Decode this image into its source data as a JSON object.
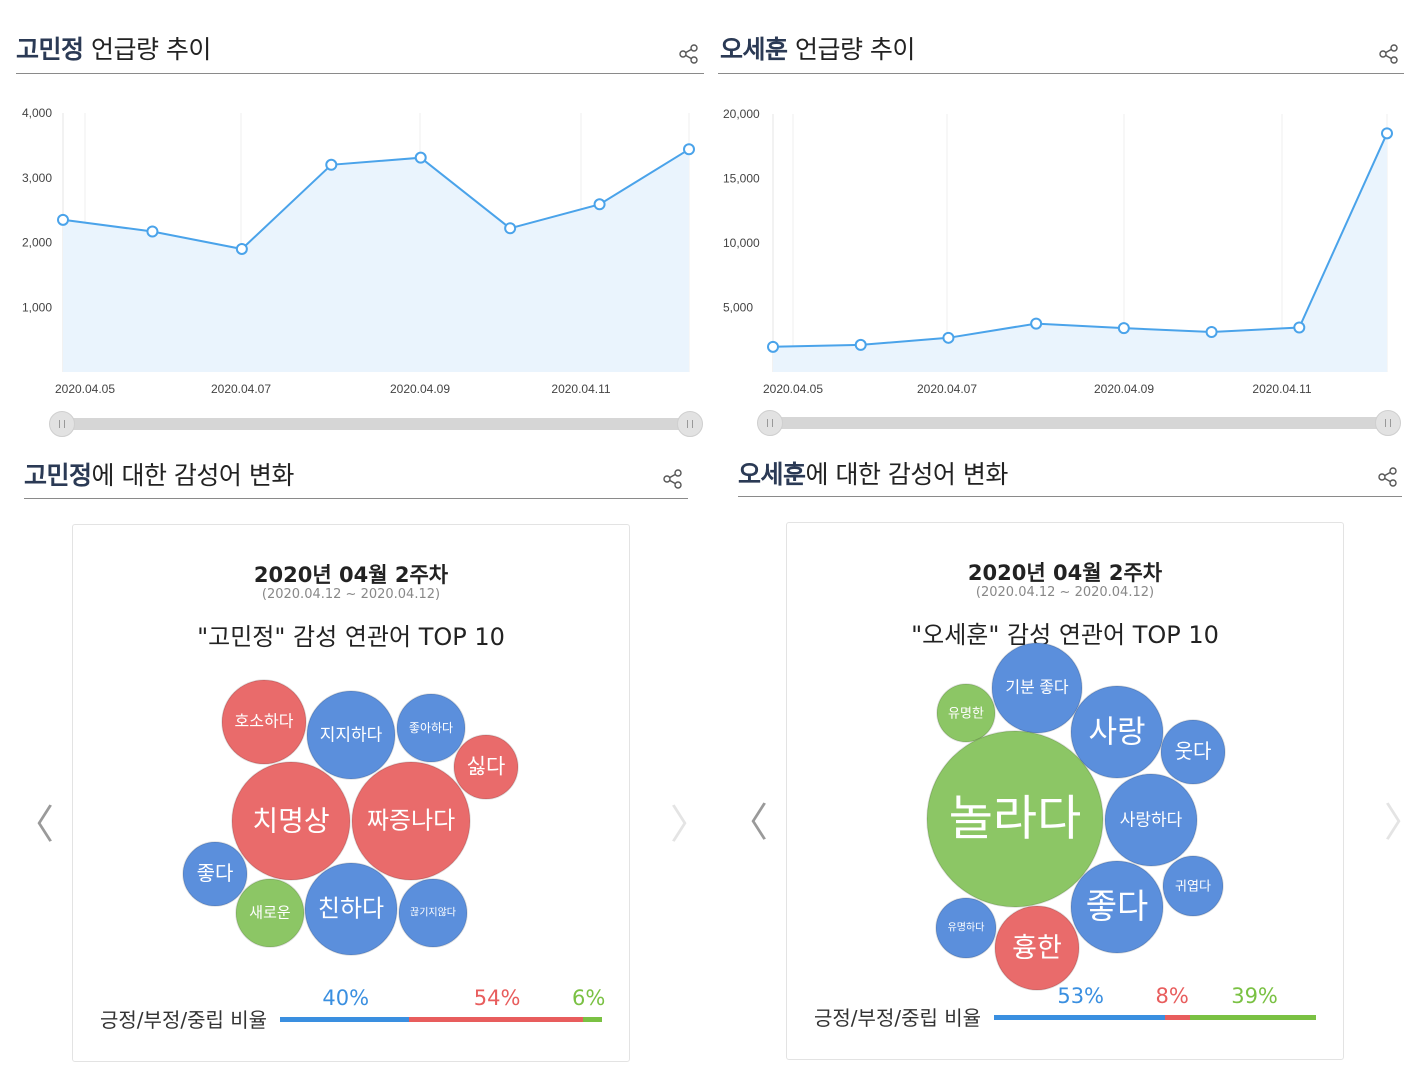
{
  "left": {
    "trend": {
      "title_name": "고민정",
      "title_rest": " 언급량 추이",
      "chart_data": {
        "type": "area",
        "title": "고민정 언급량 추이",
        "x_labels": [
          "2020.04.05",
          "2020.04.07",
          "2020.04.09",
          "2020.04.11"
        ],
        "y_ticks": [
          "4,000",
          "3,000",
          "2,000",
          "1,000"
        ],
        "y_tick_values": [
          4000,
          3000,
          2000,
          1000
        ],
        "ylim": [
          0,
          4000
        ],
        "values": [
          2350,
          2170,
          1900,
          3200,
          3310,
          2220,
          2590,
          3440
        ]
      }
    },
    "sentiment": {
      "title_name": "고민정",
      "title_rest": "에 대한 감성어 변화",
      "week": "2020년 04월 2주차",
      "range": "(2020.04.12 ~ 2020.04.12)",
      "headline": "\"고민정\" 감성 연관어 TOP 10",
      "bubbles": [
        {
          "label": "호소하다",
          "sentiment": "negative"
        },
        {
          "label": "지지하다",
          "sentiment": "positive"
        },
        {
          "label": "좋아하다",
          "sentiment": "positive"
        },
        {
          "label": "싫다",
          "sentiment": "negative"
        },
        {
          "label": "치명상",
          "sentiment": "negative"
        },
        {
          "label": "짜증나다",
          "sentiment": "negative"
        },
        {
          "label": "좋다",
          "sentiment": "positive"
        },
        {
          "label": "새로운",
          "sentiment": "neutral"
        },
        {
          "label": "친하다",
          "sentiment": "positive"
        },
        {
          "label": "끊기지않다",
          "sentiment": "positive"
        }
      ],
      "ratio_label": "긍정/부정/중립 비율",
      "ratios": [
        {
          "text": "40%",
          "value": 40,
          "color": "#3a8fe0"
        },
        {
          "text": "54%",
          "value": 54,
          "color": "#e85d5d"
        },
        {
          "text": "6%",
          "value": 6,
          "color": "#7ac143"
        }
      ],
      "prev_arrow": "〈",
      "next_arrow": "〉"
    }
  },
  "right": {
    "trend": {
      "title_name": "오세훈",
      "title_rest": " 언급량 추이",
      "chart_data": {
        "type": "area",
        "title": "오세훈 언급량 추이",
        "x_labels": [
          "2020.04.05",
          "2020.04.07",
          "2020.04.09",
          "2020.04.11"
        ],
        "y_ticks": [
          "20,000",
          "15,000",
          "10,000",
          "5,000"
        ],
        "y_tick_values": [
          20000,
          15000,
          10000,
          5000
        ],
        "ylim": [
          0,
          20000
        ],
        "values": [
          1950,
          2100,
          2650,
          3750,
          3400,
          3100,
          3450,
          18500
        ]
      }
    },
    "sentiment": {
      "title_name": "오세훈",
      "title_rest": "에 대한 감성어 변화",
      "week": "2020년 04월 2주차",
      "range": "(2020.04.12 ~ 2020.04.12)",
      "headline": "\"오세훈\" 감성 연관어 TOP 10",
      "bubbles": [
        {
          "label": "유명한",
          "sentiment": "neutral"
        },
        {
          "label": "기분 좋다",
          "sentiment": "positive"
        },
        {
          "label": "사랑",
          "sentiment": "positive"
        },
        {
          "label": "웃다",
          "sentiment": "positive"
        },
        {
          "label": "놀라다",
          "sentiment": "neutral"
        },
        {
          "label": "사랑하다",
          "sentiment": "positive"
        },
        {
          "label": "귀엽다",
          "sentiment": "positive"
        },
        {
          "label": "좋다",
          "sentiment": "positive"
        },
        {
          "label": "유명하다",
          "sentiment": "positive"
        },
        {
          "label": "흉한",
          "sentiment": "negative"
        }
      ],
      "ratio_label": "긍정/부정/중립 비율",
      "ratios": [
        {
          "text": "53%",
          "value": 53,
          "color": "#3a8fe0"
        },
        {
          "text": "8%",
          "value": 8,
          "color": "#e85d5d"
        },
        {
          "text": "39%",
          "value": 39,
          "color": "#7ac143"
        }
      ],
      "prev_arrow": "〈",
      "next_arrow": "〉"
    }
  },
  "colors": {
    "line": "#4aa3ea",
    "area": "#eaf4fd",
    "positive": "#5b8fdc",
    "negative": "#e96b6b",
    "neutral": "#8cc665"
  }
}
